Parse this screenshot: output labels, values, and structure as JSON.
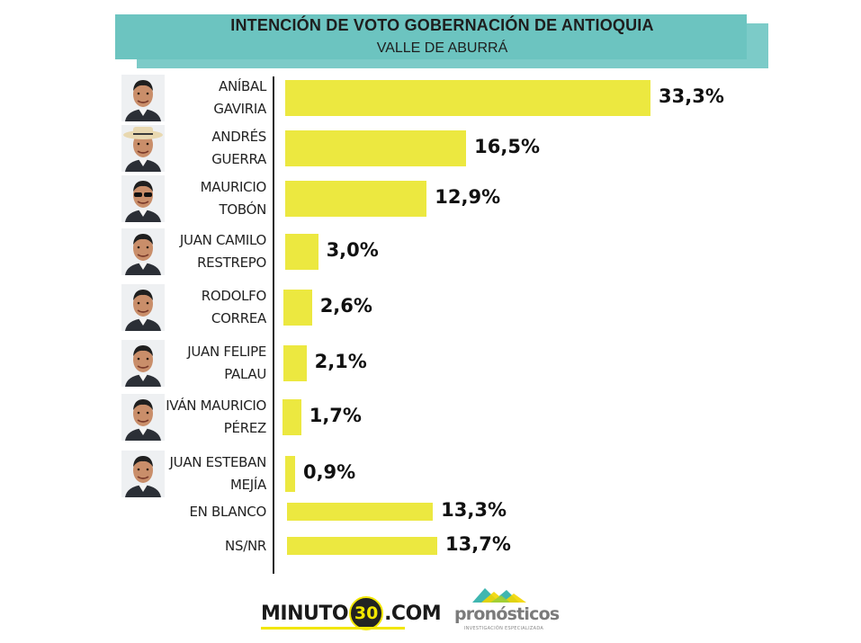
{
  "header": {
    "title": "INTENCIÓN DE VOTO GOBERNACIÓN DE ANTIOQUIA",
    "subtitle": "VALLE DE ABURRÁ"
  },
  "chart_data": {
    "type": "bar",
    "orientation": "horizontal",
    "title": "INTENCIÓN DE VOTO GOBERNACIÓN DE ANTIOQUIA",
    "subtitle": "VALLE DE ABURRÁ",
    "xlim": [
      0,
      33.3
    ],
    "grid": false,
    "bar_color": "#ece840",
    "categories": [
      {
        "line1": "ANÍBAL",
        "line2": "GAVIRIA",
        "value": 33.3,
        "label": "33,3%",
        "photo": "candidate-photo"
      },
      {
        "line1": "ANDRÉS",
        "line2": "GUERRA",
        "value": 16.5,
        "label": "16,5%",
        "photo": "candidate-photo-hat"
      },
      {
        "line1": "MAURICIO",
        "line2": "TOBÓN",
        "value": 12.9,
        "label": "12,9%",
        "photo": "candidate-photo-sunglasses"
      },
      {
        "line1": "JUAN CAMILO",
        "line2": "RESTREPO",
        "value": 3.0,
        "label": "3,0%",
        "photo": "candidate-photo"
      },
      {
        "line1": "RODOLFO",
        "line2": "CORREA",
        "value": 2.6,
        "label": "2,6%",
        "photo": "candidate-photo"
      },
      {
        "line1": "JUAN FELIPE",
        "line2": "PALAU",
        "value": 2.1,
        "label": "2,1%",
        "photo": "candidate-photo"
      },
      {
        "line1": "IVÁN MAURICIO",
        "line2": "PÉREZ",
        "value": 1.7,
        "label": "1,7%",
        "photo": "candidate-photo"
      },
      {
        "line1": "JUAN ESTEBAN",
        "line2": "MEJÍA",
        "value": 0.9,
        "label": "0,9%",
        "photo": "candidate-photo"
      },
      {
        "line1": "EN BLANCO",
        "line2": "",
        "value": 13.3,
        "label": "13,3%",
        "photo": ""
      },
      {
        "line1": "NS/NR",
        "line2": "",
        "value": 13.7,
        "label": "13,7%",
        "photo": ""
      }
    ]
  },
  "footer": {
    "minuto_left": "MINUTO",
    "minuto_number": "30",
    "minuto_right": ".COM",
    "pronosticos_word": "pronósticos",
    "pronosticos_sub": "INVESTIGACIÓN ESPECIALIZADA"
  },
  "colors": {
    "banner": "#6cc4c0",
    "bar": "#ece840",
    "minuto_accent": "#f2e600"
  }
}
